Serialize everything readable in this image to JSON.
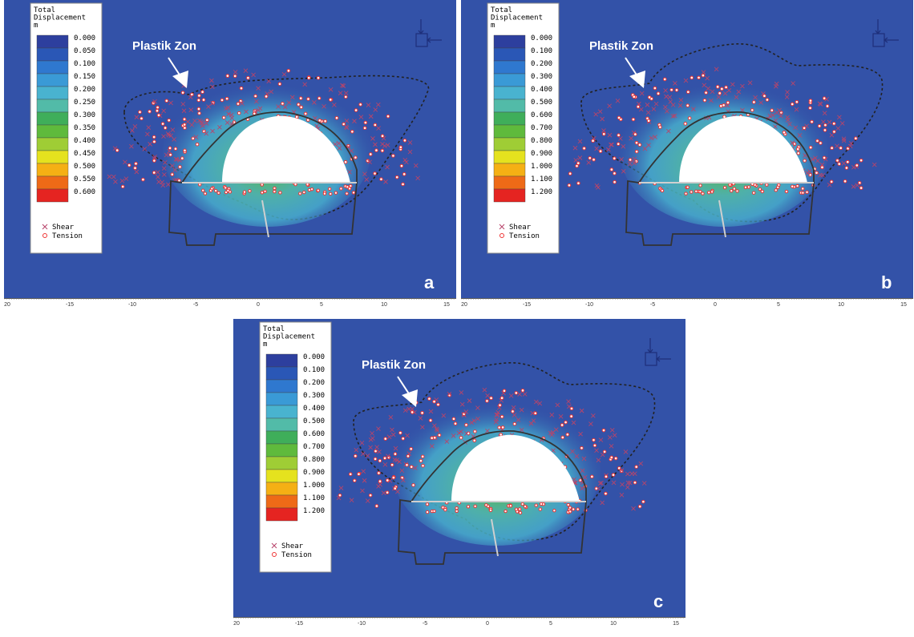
{
  "figure": {
    "panels": [
      {
        "id": "a",
        "letter": "a",
        "legend_title": [
          "Total",
          "Displacement",
          "m"
        ],
        "legend_values": [
          "0.000",
          "0.050",
          "0.100",
          "0.150",
          "0.200",
          "0.250",
          "0.300",
          "0.350",
          "0.400",
          "0.450",
          "0.500",
          "0.550",
          "0.600"
        ],
        "plastic_zone_label": "Plastik Zon",
        "axis_ticks": [
          "20",
          "-15",
          "-10",
          "-5",
          "0",
          "5",
          "10",
          "15"
        ]
      },
      {
        "id": "b",
        "letter": "b",
        "legend_title": [
          "Total",
          "Displacement",
          "m"
        ],
        "legend_values": [
          "0.000",
          "0.100",
          "0.200",
          "0.300",
          "0.400",
          "0.500",
          "0.600",
          "0.700",
          "0.800",
          "0.900",
          "1.000",
          "1.100",
          "1.200"
        ],
        "plastic_zone_label": "Plastik Zon",
        "axis_ticks": [
          "20",
          "-15",
          "-10",
          "-5",
          "0",
          "5",
          "10",
          "15"
        ]
      },
      {
        "id": "c",
        "letter": "c",
        "legend_title": [
          "Total",
          "Displacement",
          "m"
        ],
        "legend_values": [
          "0.000",
          "0.100",
          "0.200",
          "0.300",
          "0.400",
          "0.500",
          "0.600",
          "0.700",
          "0.800",
          "0.900",
          "1.000",
          "1.100",
          "1.200"
        ],
        "plastic_zone_label": "Plastik Zon",
        "axis_ticks": [
          "20",
          "-15",
          "-10",
          "-5",
          "0",
          "5",
          "10",
          "15"
        ]
      }
    ],
    "legend_symbols": {
      "shear": "Shear",
      "tension": "Tension"
    },
    "legend_colors": [
      "#2d3f9e",
      "#2a57b6",
      "#2f78cf",
      "#3a9ad6",
      "#49b3cf",
      "#52bba8",
      "#3fae5a",
      "#5fba3c",
      "#9fcd35",
      "#e5e21e",
      "#f5b014",
      "#ee6a17",
      "#e52421"
    ],
    "colors": {
      "background": "#3352a8",
      "tension": "#ee3333",
      "shear": "#cc3355",
      "outline": "#333333"
    }
  }
}
